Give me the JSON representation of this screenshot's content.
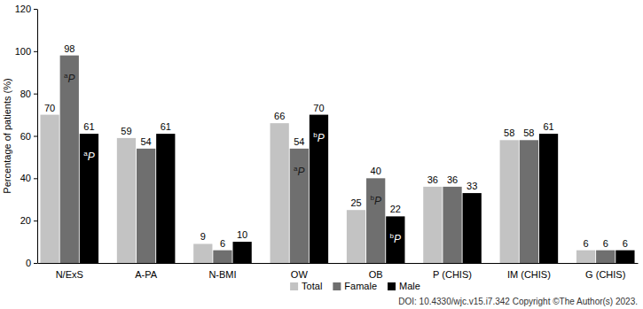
{
  "chart_data": {
    "type": "bar",
    "y_label": "Percentage of patients (%)",
    "categories": [
      "N/ExS",
      "A-PA",
      "N-BMI",
      "OW",
      "OB",
      "P (CHIS)",
      "IM (CHIS)",
      "G (CHIS)"
    ],
    "series": [
      {
        "name": "Total",
        "color": "#c3c3c3",
        "values": [
          70,
          59,
          9,
          66,
          25,
          36,
          58,
          6
        ]
      },
      {
        "name": "Famale",
        "color": "#6f6f6f",
        "values": [
          98,
          54,
          6,
          54,
          40,
          36,
          58,
          6
        ]
      },
      {
        "name": "Male",
        "color": "#000000",
        "values": [
          61,
          61,
          10,
          70,
          22,
          33,
          61,
          6
        ]
      }
    ],
    "ylim": [
      0,
      120
    ],
    "yticks": [
      0,
      20,
      40,
      60,
      80,
      100,
      120
    ],
    "grid": false,
    "data_labels": true,
    "legend": "bottom",
    "annotations": [
      {
        "category": "N/ExS",
        "series": "Famale",
        "sup": "a",
        "text": "P"
      },
      {
        "category": "N/ExS",
        "series": "Male",
        "sup": "a",
        "text": "P"
      },
      {
        "category": "OW",
        "series": "Famale",
        "sup": "a",
        "text": "P"
      },
      {
        "category": "OW",
        "series": "Male",
        "sup": "b",
        "text": "P"
      },
      {
        "category": "OB",
        "series": "Famale",
        "sup": "b",
        "text": "P"
      },
      {
        "category": "OB",
        "series": "Male",
        "sup": "b",
        "text": "P"
      }
    ],
    "footnote": "DOI: 10.4330/wjc.v15.i7.342 Copyright ©The Author(s) 2023."
  }
}
